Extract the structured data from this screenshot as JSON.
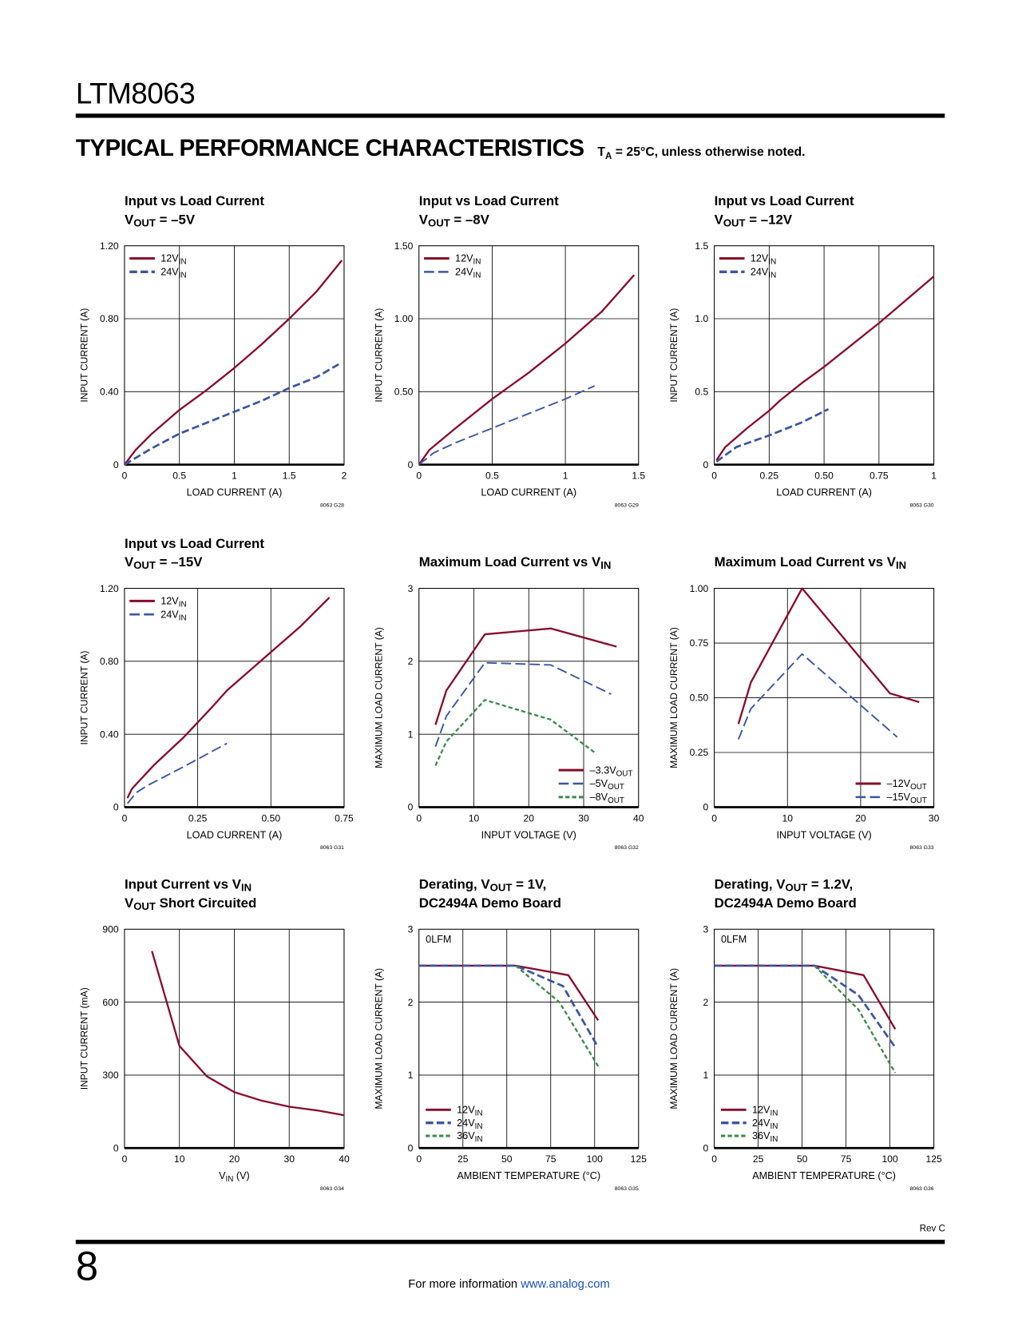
{
  "header": {
    "doc_title": "LTM8063",
    "section_title": "TYPICAL PERFORMANCE CHARACTERISTICS",
    "conditions": {
      "t": "T",
      "sub": "A",
      "rest": " = 25°C, unless otherwise noted."
    }
  },
  "footer": {
    "rev": "Rev C",
    "page_number": "8",
    "more_info": "For more information ",
    "link": "www.analog.com"
  },
  "colors": {
    "red": "#8b0a2c",
    "blue": "#3b55a5",
    "green": "#3a8a4a",
    "grid": "#000000"
  },
  "chart_data": [
    {
      "type": "line",
      "title_lines": [
        [
          {
            "t": "Input vs Load Current"
          }
        ],
        [
          {
            "t": "V"
          },
          {
            "t": "OUT",
            "sub": true
          },
          {
            "t": " = –5V"
          }
        ]
      ],
      "xlabel": [
        {
          "t": "LOAD CURRENT (A)"
        }
      ],
      "ylabel": "INPUT CURRENT (A)",
      "fig_code": "8063 G28",
      "xlim": [
        0,
        2
      ],
      "ylim": [
        0,
        1.2
      ],
      "xticks": [
        0,
        0.5,
        1,
        1.5,
        2
      ],
      "xtick_labels": [
        "0",
        "0.5",
        "1",
        "1.5",
        "2"
      ],
      "yticks": [
        0,
        0.4,
        0.8,
        1.2
      ],
      "ytick_labels": [
        "0",
        "0.40",
        "0.80",
        "1.20"
      ],
      "grid": true,
      "legend": "top-left",
      "series": [
        {
          "name": [
            {
              "t": "12V"
            },
            {
              "t": "IN",
              "sub": true
            }
          ],
          "color": "red",
          "style": "solid",
          "x": [
            0,
            0.1,
            0.25,
            0.5,
            0.75,
            1,
            1.25,
            1.5,
            1.75,
            1.98
          ],
          "y": [
            0,
            0.08,
            0.17,
            0.3,
            0.41,
            0.53,
            0.66,
            0.8,
            0.95,
            1.12
          ]
        },
        {
          "name": [
            {
              "t": "24V"
            },
            {
              "t": "IN",
              "sub": true
            }
          ],
          "color": "blue",
          "style": "thick-dash",
          "x": [
            0,
            0.25,
            0.5,
            0.75,
            1,
            1.25,
            1.5,
            1.75,
            1.95
          ],
          "y": [
            0,
            0.09,
            0.17,
            0.23,
            0.29,
            0.35,
            0.42,
            0.48,
            0.55
          ]
        }
      ]
    },
    {
      "type": "line",
      "title_lines": [
        [
          {
            "t": "Input vs Load Current"
          }
        ],
        [
          {
            "t": "V"
          },
          {
            "t": "OUT",
            "sub": true
          },
          {
            "t": " = –8V"
          }
        ]
      ],
      "xlabel": [
        {
          "t": "LOAD CURRENT (A)"
        }
      ],
      "ylabel": "INPUT CURRENT (A)",
      "fig_code": "8063 G29",
      "xlim": [
        0,
        1.5
      ],
      "ylim": [
        0,
        1.5
      ],
      "xticks": [
        0,
        0.5,
        1,
        1.5
      ],
      "xtick_labels": [
        "0",
        "0.5",
        "1",
        "1.5"
      ],
      "yticks": [
        0,
        0.5,
        1,
        1.5
      ],
      "ytick_labels": [
        "0",
        "0.50",
        "1.00",
        "1.50"
      ],
      "grid": true,
      "legend": "top-left",
      "series": [
        {
          "name": [
            {
              "t": "12V"
            },
            {
              "t": "IN",
              "sub": true
            }
          ],
          "color": "red",
          "style": "solid",
          "x": [
            0,
            0.07,
            0.25,
            0.5,
            0.75,
            1,
            1.25,
            1.47
          ],
          "y": [
            0,
            0.1,
            0.25,
            0.45,
            0.63,
            0.83,
            1.05,
            1.3
          ]
        },
        {
          "name": [
            {
              "t": "24V"
            },
            {
              "t": "IN",
              "sub": true
            }
          ],
          "color": "blue",
          "style": "long-dash",
          "x": [
            0,
            0.1,
            0.25,
            0.5,
            0.75,
            1,
            1.2
          ],
          "y": [
            0,
            0.08,
            0.15,
            0.25,
            0.35,
            0.45,
            0.54
          ]
        }
      ]
    },
    {
      "type": "line",
      "title_lines": [
        [
          {
            "t": "Input vs Load Current"
          }
        ],
        [
          {
            "t": "V"
          },
          {
            "t": "OUT",
            "sub": true
          },
          {
            "t": " = –12V"
          }
        ]
      ],
      "xlabel": [
        {
          "t": "LOAD CURRENT (A)"
        }
      ],
      "ylabel": "INPUT CURRENT (A)",
      "fig_code": "8063 G30",
      "xlim": [
        0,
        1
      ],
      "ylim": [
        0,
        1.5
      ],
      "xticks": [
        0,
        0.25,
        0.5,
        0.75,
        1
      ],
      "xtick_labels": [
        "0",
        "0.25",
        "0.50",
        "0.75",
        "1"
      ],
      "yticks": [
        0,
        0.5,
        1,
        1.5
      ],
      "ytick_labels": [
        "0",
        "0.5",
        "1.0",
        "1.5"
      ],
      "grid": true,
      "legend": "top-left",
      "series": [
        {
          "name": [
            {
              "t": "12V"
            },
            {
              "t": "IN",
              "sub": true
            }
          ],
          "color": "red",
          "style": "solid",
          "x": [
            0.01,
            0.05,
            0.15,
            0.25,
            0.3,
            0.4,
            0.5,
            0.75,
            1
          ],
          "y": [
            0.03,
            0.12,
            0.25,
            0.37,
            0.44,
            0.56,
            0.67,
            0.97,
            1.29
          ]
        },
        {
          "name": [
            {
              "t": "24V"
            },
            {
              "t": "IN",
              "sub": true
            }
          ],
          "color": "blue",
          "style": "thick-dash",
          "x": [
            0.01,
            0.1,
            0.25,
            0.4,
            0.52
          ],
          "y": [
            0.02,
            0.12,
            0.2,
            0.29,
            0.38
          ]
        }
      ]
    },
    {
      "type": "line",
      "title_lines": [
        [
          {
            "t": "Input vs Load Current"
          }
        ],
        [
          {
            "t": "V"
          },
          {
            "t": "OUT",
            "sub": true
          },
          {
            "t": " = –15V"
          }
        ]
      ],
      "xlabel": [
        {
          "t": "LOAD CURRENT (A)"
        }
      ],
      "ylabel": "INPUT CURRENT (A)",
      "fig_code": "8063 G31",
      "xlim": [
        0,
        0.75
      ],
      "ylim": [
        0,
        1.2
      ],
      "xticks": [
        0,
        0.25,
        0.5,
        0.75
      ],
      "xtick_labels": [
        "0",
        "0.25",
        "0.50",
        "0.75"
      ],
      "yticks": [
        0,
        0.4,
        0.8,
        1.2
      ],
      "ytick_labels": [
        "0",
        "0.40",
        "0.80",
        "1.20"
      ],
      "grid": true,
      "legend": "top-left",
      "series": [
        {
          "name": [
            {
              "t": "12V"
            },
            {
              "t": "IN",
              "sub": true
            }
          ],
          "color": "red",
          "style": "solid",
          "x": [
            0.01,
            0.025,
            0.1,
            0.2,
            0.3,
            0.35,
            0.5,
            0.6,
            0.7
          ],
          "y": [
            0.05,
            0.1,
            0.23,
            0.38,
            0.55,
            0.64,
            0.85,
            0.99,
            1.15
          ]
        },
        {
          "name": [
            {
              "t": "24V"
            },
            {
              "t": "IN",
              "sub": true
            }
          ],
          "color": "blue",
          "style": "long-dash",
          "x": [
            0.01,
            0.04,
            0.08,
            0.2,
            0.35
          ],
          "y": [
            0.02,
            0.08,
            0.12,
            0.22,
            0.35
          ]
        }
      ]
    },
    {
      "type": "line",
      "title_lines": [
        [
          {
            "t": "Maximum Load Current vs V"
          },
          {
            "t": "IN",
            "sub": true
          }
        ]
      ],
      "xlabel": [
        {
          "t": "INPUT VOLTAGE (V)"
        }
      ],
      "ylabel": "MAXIMUM LOAD CURRENT (A)",
      "fig_code": "8063 G32",
      "xlim": [
        0,
        40
      ],
      "ylim": [
        0,
        3
      ],
      "xticks": [
        0,
        10,
        20,
        30,
        40
      ],
      "xtick_labels": [
        "0",
        "10",
        "20",
        "30",
        "40"
      ],
      "yticks": [
        0,
        1,
        2,
        3
      ],
      "ytick_labels": [
        "0",
        "1",
        "2",
        "3"
      ],
      "grid": true,
      "legend": "bottom-right",
      "series": [
        {
          "name": [
            {
              "t": "–3.3V"
            },
            {
              "t": "OUT",
              "sub": true
            }
          ],
          "color": "red",
          "style": "solid",
          "x": [
            3,
            5,
            12,
            24,
            36
          ],
          "y": [
            1.13,
            1.6,
            2.37,
            2.45,
            2.2
          ]
        },
        {
          "name": [
            {
              "t": "–5V"
            },
            {
              "t": "OUT",
              "sub": true
            }
          ],
          "color": "blue",
          "style": "long-dash",
          "x": [
            3,
            5,
            12,
            24,
            35
          ],
          "y": [
            0.83,
            1.25,
            1.98,
            1.95,
            1.55
          ]
        },
        {
          "name": [
            {
              "t": "–8V"
            },
            {
              "t": "OUT",
              "sub": true
            }
          ],
          "color": "green",
          "style": "short-dash",
          "x": [
            3,
            5,
            12,
            24,
            32
          ],
          "y": [
            0.57,
            0.9,
            1.47,
            1.2,
            0.75
          ]
        }
      ]
    },
    {
      "type": "line",
      "title_lines": [
        [
          {
            "t": "Maximum Load Current vs V"
          },
          {
            "t": "IN",
            "sub": true
          }
        ]
      ],
      "xlabel": [
        {
          "t": "INPUT VOLTAGE (V)"
        }
      ],
      "ylabel": "MAXIMUM LOAD CURRENT (A)",
      "fig_code": "8063 G33",
      "xlim": [
        0,
        30
      ],
      "ylim": [
        0,
        1
      ],
      "xticks": [
        0,
        10,
        20,
        30
      ],
      "xtick_labels": [
        "0",
        "10",
        "20",
        "30"
      ],
      "yticks": [
        0,
        0.25,
        0.5,
        0.75,
        1
      ],
      "ytick_labels": [
        "0",
        "0.25",
        "0.50",
        "0.75",
        "1.00"
      ],
      "grid": true,
      "legend": "bottom-right",
      "series": [
        {
          "name": [
            {
              "t": "–12V"
            },
            {
              "t": "OUT",
              "sub": true
            }
          ],
          "color": "red",
          "style": "solid",
          "x": [
            3.3,
            5,
            12,
            24,
            28
          ],
          "y": [
            0.38,
            0.57,
            1.0,
            0.52,
            0.48
          ]
        },
        {
          "name": [
            {
              "t": "–15V"
            },
            {
              "t": "OUT",
              "sub": true
            }
          ],
          "color": "blue",
          "style": "long-dash",
          "x": [
            3.3,
            5,
            12,
            25
          ],
          "y": [
            0.31,
            0.45,
            0.7,
            0.32
          ]
        }
      ]
    },
    {
      "type": "line",
      "title_lines": [
        [
          {
            "t": "Input Current vs V"
          },
          {
            "t": "IN",
            "sub": true
          }
        ],
        [
          {
            "t": "V"
          },
          {
            "t": "OUT",
            "sub": true
          },
          {
            "t": " Short Circuited"
          }
        ]
      ],
      "xlabel": [
        {
          "t": "V"
        },
        {
          "t": "IN",
          "sub": true
        },
        {
          "t": " (V)"
        }
      ],
      "ylabel": "INPUT CURRENT (mA)",
      "fig_code": "8063 G34",
      "xlim": [
        0,
        40
      ],
      "ylim": [
        0,
        900
      ],
      "xticks": [
        0,
        10,
        20,
        30,
        40
      ],
      "xtick_labels": [
        "0",
        "10",
        "20",
        "30",
        "40"
      ],
      "yticks": [
        0,
        300,
        600,
        900
      ],
      "ytick_labels": [
        "0",
        "300",
        "600",
        "900"
      ],
      "grid": true,
      "legend": "none",
      "series": [
        {
          "color": "red",
          "style": "solid",
          "x": [
            5,
            10,
            15,
            20,
            25,
            30,
            35,
            40
          ],
          "y": [
            810,
            420,
            295,
            230,
            195,
            170,
            155,
            135
          ]
        }
      ]
    },
    {
      "type": "line",
      "title_lines": [
        [
          {
            "t": "Derating, V"
          },
          {
            "t": "OUT",
            "sub": true
          },
          {
            "t": " = 1V,"
          }
        ],
        [
          {
            "t": "DC2494A Demo Board"
          }
        ]
      ],
      "xlabel": [
        {
          "t": "AMBIENT TEMPERATURE (°C)"
        }
      ],
      "ylabel": "MAXIMUM LOAD CURRENT (A)",
      "fig_code": "8063 G35",
      "annotation": "0LFM",
      "xlim": [
        0,
        125
      ],
      "ylim": [
        0,
        3
      ],
      "xticks": [
        0,
        25,
        50,
        75,
        100,
        125
      ],
      "xtick_labels": [
        "0",
        "25",
        "50",
        "75",
        "100",
        "125"
      ],
      "yticks": [
        0,
        1,
        2,
        3
      ],
      "ytick_labels": [
        "0",
        "1",
        "2",
        "3"
      ],
      "grid": true,
      "legend": "bottom-left",
      "series": [
        {
          "name": [
            {
              "t": "12V"
            },
            {
              "t": "IN",
              "sub": true
            }
          ],
          "color": "red",
          "style": "solid",
          "x": [
            0,
            55,
            85,
            102
          ],
          "y": [
            2.5,
            2.5,
            2.37,
            1.75
          ]
        },
        {
          "name": [
            {
              "t": "24V"
            },
            {
              "t": "IN",
              "sub": true
            }
          ],
          "color": "blue",
          "style": "thick-dash",
          "x": [
            0,
            55,
            82,
            102
          ],
          "y": [
            2.5,
            2.5,
            2.22,
            1.38
          ]
        },
        {
          "name": [
            {
              "t": "36V"
            },
            {
              "t": "IN",
              "sub": true
            }
          ],
          "color": "green",
          "style": "short-dash",
          "x": [
            55,
            80,
            102
          ],
          "y": [
            2.5,
            2.0,
            1.12
          ]
        }
      ]
    },
    {
      "type": "line",
      "title_lines": [
        [
          {
            "t": "Derating, V"
          },
          {
            "t": "OUT",
            "sub": true
          },
          {
            "t": " = 1.2V,"
          }
        ],
        [
          {
            "t": "DC2494A Demo Board"
          }
        ]
      ],
      "xlabel": [
        {
          "t": "AMBIENT TEMPERATURE (°C)"
        }
      ],
      "ylabel": "MAXIMUM LOAD CURRENT (A)",
      "fig_code": "8063 G36",
      "annotation": "0LFM",
      "xlim": [
        0,
        125
      ],
      "ylim": [
        0,
        3
      ],
      "xticks": [
        0,
        25,
        50,
        75,
        100,
        125
      ],
      "xtick_labels": [
        "0",
        "25",
        "50",
        "75",
        "100",
        "125"
      ],
      "yticks": [
        0,
        1,
        2,
        3
      ],
      "ytick_labels": [
        "0",
        "1",
        "2",
        "3"
      ],
      "grid": true,
      "legend": "bottom-left",
      "series": [
        {
          "name": [
            {
              "t": "12V"
            },
            {
              "t": "IN",
              "sub": true
            }
          ],
          "color": "red",
          "style": "solid",
          "x": [
            0,
            57,
            85,
            103
          ],
          "y": [
            2.5,
            2.5,
            2.37,
            1.63
          ]
        },
        {
          "name": [
            {
              "t": "24V"
            },
            {
              "t": "IN",
              "sub": true
            }
          ],
          "color": "blue",
          "style": "thick-dash",
          "x": [
            0,
            57,
            82,
            103
          ],
          "y": [
            2.5,
            2.5,
            2.1,
            1.38
          ]
        },
        {
          "name": [
            {
              "t": "36V"
            },
            {
              "t": "IN",
              "sub": true
            }
          ],
          "color": "green",
          "style": "short-dash",
          "x": [
            57,
            82,
            103
          ],
          "y": [
            2.5,
            1.9,
            1.03
          ]
        }
      ]
    }
  ]
}
